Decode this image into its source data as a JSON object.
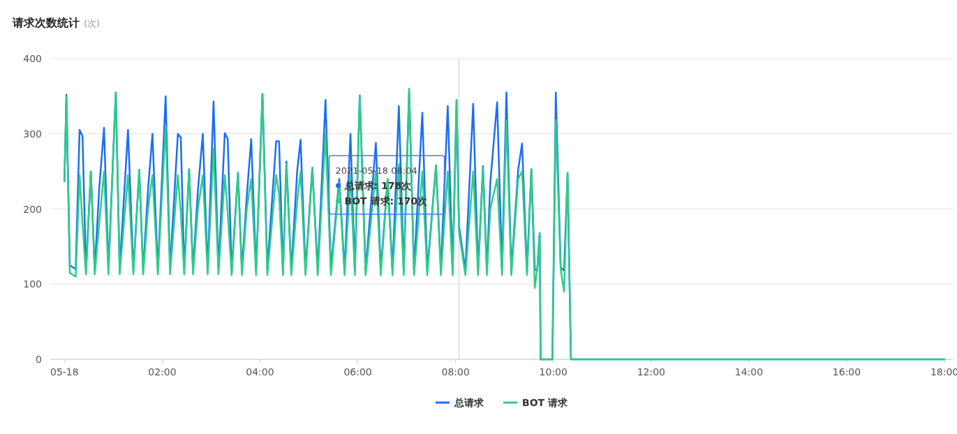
{
  "chart_data": {
    "type": "line",
    "title": "请求次数统计",
    "subtitle": "(次)",
    "x": [
      0,
      0.04,
      0.11,
      0.23,
      0.31,
      0.37,
      0.44,
      0.54,
      0.62,
      0.71,
      0.81,
      0.9,
      1.05,
      1.13,
      1.3,
      1.41,
      1.53,
      1.61,
      1.71,
      1.8,
      1.91,
      2.07,
      2.16,
      2.32,
      2.38,
      2.45,
      2.55,
      2.63,
      2.73,
      2.83,
      2.93,
      3.05,
      3.15,
      3.28,
      3.34,
      3.42,
      3.55,
      3.63,
      3.73,
      3.82,
      3.92,
      4.05,
      4.15,
      4.33,
      4.39,
      4.47,
      4.54,
      4.64,
      4.76,
      4.83,
      4.93,
      5.07,
      5.18,
      5.34,
      5.45,
      5.62,
      5.73,
      5.85,
      5.94,
      6.04,
      6.16,
      6.37,
      6.47,
      6.61,
      6.71,
      6.84,
      6.94,
      7.05,
      7.15,
      7.32,
      7.42,
      7.6,
      7.7,
      7.84,
      7.94,
      8.02,
      8.07,
      8.2,
      8.36,
      8.46,
      8.56,
      8.64,
      8.71,
      8.85,
      8.95,
      9.04,
      9.14,
      9.28,
      9.36,
      9.46,
      9.55,
      9.62,
      9.67,
      9.72,
      9.74,
      9.98,
      10.05,
      10.15,
      10.22,
      10.29,
      10.36,
      18.0
    ],
    "series": [
      {
        "name": "总请求",
        "color": "#1a6ef5",
        "values": [
          237,
          352,
          125,
          120,
          305,
          297,
          118,
          250,
          118,
          226,
          308,
          120,
          355,
          120,
          305,
          118,
          252,
          118,
          226,
          300,
          118,
          350,
          120,
          300,
          295,
          118,
          253,
          118,
          225,
          300,
          118,
          343,
          120,
          301,
          293,
          118,
          248,
          118,
          218,
          293,
          118,
          353,
          120,
          290,
          290,
          118,
          263,
          118,
          250,
          292,
          118,
          255,
          118,
          345,
          120,
          240,
          118,
          300,
          118,
          351,
          118,
          288,
          118,
          240,
          118,
          337,
          118,
          357,
          118,
          328,
          118,
          258,
          118,
          337,
          118,
          345,
          178,
          118,
          340,
          118,
          257,
          118,
          235,
          342,
          120,
          355,
          118,
          252,
          287,
          118,
          253,
          120,
          118,
          168,
          0,
          0,
          355,
          122,
          118,
          248,
          0,
          0
        ]
      },
      {
        "name": "BOT 请求",
        "color": "#2ecc87",
        "values": [
          237,
          350,
          115,
          110,
          245,
          180,
          113,
          250,
          113,
          180,
          250,
          113,
          355,
          113,
          245,
          113,
          252,
          113,
          200,
          245,
          113,
          310,
          113,
          245,
          195,
          113,
          253,
          113,
          200,
          245,
          113,
          280,
          113,
          245,
          195,
          112,
          248,
          112,
          200,
          240,
          112,
          353,
          112,
          245,
          220,
          112,
          260,
          112,
          210,
          250,
          112,
          255,
          112,
          300,
          112,
          235,
          112,
          245,
          112,
          351,
          112,
          250,
          112,
          240,
          112,
          260,
          112,
          360,
          112,
          250,
          112,
          258,
          112,
          250,
          112,
          345,
          170,
          112,
          250,
          112,
          255,
          112,
          200,
          240,
          112,
          318,
          112,
          240,
          250,
          112,
          253,
          95,
          120,
          168,
          0,
          0,
          318,
          120,
          90,
          248,
          0,
          0
        ]
      }
    ],
    "xlim": [
      -0.29,
      18.17
    ],
    "xticks": [
      {
        "value": 0,
        "label": "05-18"
      },
      {
        "value": 2,
        "label": "02:00"
      },
      {
        "value": 4,
        "label": "04:00"
      },
      {
        "value": 6,
        "label": "06:00"
      },
      {
        "value": 8,
        "label": "08:00"
      },
      {
        "value": 10,
        "label": "10:00"
      },
      {
        "value": 12,
        "label": "12:00"
      },
      {
        "value": 14,
        "label": "14:00"
      },
      {
        "value": 16,
        "label": "16:00"
      },
      {
        "value": 18,
        "label": "18:00"
      }
    ],
    "ylim": [
      0,
      400
    ],
    "yticks": [
      0,
      100,
      200,
      300,
      400
    ],
    "grid": "y",
    "legend": "bottom",
    "marker": "none",
    "line_style": "solid",
    "ref_lines": [
      {
        "axis": "x",
        "value": 8.07,
        "color": "#c8cdd6"
      }
    ],
    "annotations": [
      "2021-05-18 08:04",
      "总请求: 178次",
      "BOT 请求: 170次"
    ]
  }
}
